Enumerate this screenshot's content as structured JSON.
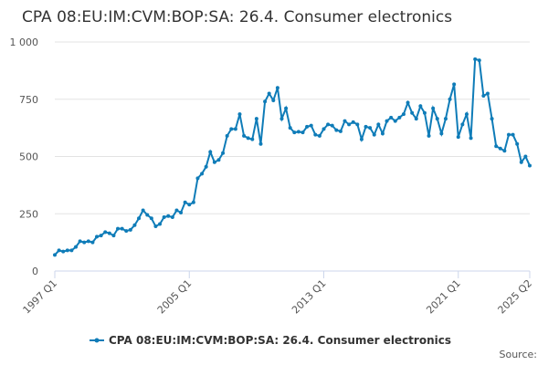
{
  "chart_data": {
    "type": "line",
    "title": "CPA 08:EU:IM:CVM:BOP:SA: 26.4. Consumer electronics",
    "source": "Source:",
    "categories": [
      "1997 Q1",
      null,
      null,
      null,
      null,
      null,
      null,
      null,
      null,
      null,
      null,
      null,
      null,
      null,
      null,
      null,
      null,
      null,
      null,
      null,
      null,
      null,
      null,
      null,
      null,
      null,
      null,
      null,
      null,
      null,
      null,
      null,
      "2005 Q1",
      null,
      null,
      null,
      null,
      null,
      null,
      null,
      null,
      null,
      null,
      null,
      null,
      null,
      null,
      null,
      null,
      null,
      null,
      null,
      null,
      null,
      null,
      null,
      null,
      null,
      null,
      null,
      null,
      null,
      null,
      null,
      "2013 Q1",
      null,
      null,
      null,
      null,
      null,
      null,
      null,
      null,
      null,
      null,
      null,
      null,
      null,
      null,
      null,
      null,
      null,
      null,
      null,
      null,
      null,
      null,
      null,
      null,
      null,
      null,
      null,
      null,
      null,
      null,
      null,
      "2021 Q1",
      null,
      null,
      null,
      null,
      null,
      null,
      null,
      null,
      null,
      null,
      null,
      null,
      null,
      null,
      null,
      null,
      "2025 Q2"
    ],
    "series": [
      {
        "name": "CPA 08:EU:IM:CVM:BOP:SA: 26.4. Consumer electronics",
        "color": "#0f7cb8",
        "values": [
          70,
          90,
          85,
          90,
          90,
          105,
          130,
          125,
          130,
          125,
          150,
          155,
          170,
          165,
          155,
          185,
          185,
          175,
          180,
          200,
          230,
          265,
          245,
          230,
          195,
          205,
          235,
          240,
          235,
          265,
          255,
          300,
          290,
          300,
          405,
          425,
          455,
          520,
          475,
          485,
          515,
          590,
          620,
          620,
          685,
          590,
          580,
          575,
          665,
          555,
          740,
          775,
          745,
          800,
          665,
          710,
          625,
          605,
          608,
          605,
          630,
          635,
          595,
          590,
          620,
          640,
          635,
          615,
          610,
          655,
          640,
          650,
          640,
          575,
          630,
          625,
          595,
          640,
          600,
          655,
          670,
          655,
          670,
          685,
          735,
          690,
          665,
          720,
          690,
          590,
          710,
          665,
          600,
          665,
          750,
          815,
          585,
          640,
          685,
          580,
          925,
          920,
          765,
          775,
          665,
          545,
          535,
          525,
          595,
          595,
          555,
          475,
          500,
          460
        ]
      }
    ],
    "ylim": [
      0,
      1000
    ],
    "yticks": [
      0,
      250,
      500,
      750,
      {
        "value": 1000,
        "label": "1 000"
      }
    ],
    "grid": true
  }
}
